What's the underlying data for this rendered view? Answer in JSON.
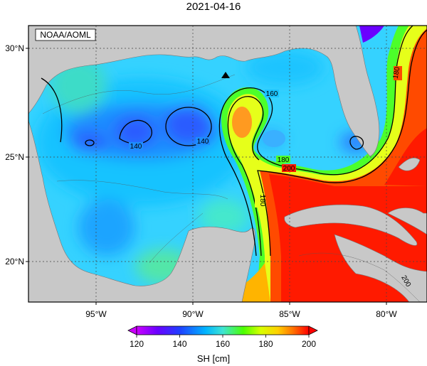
{
  "title": "2021-04-16",
  "credit": "NOAA/AOML",
  "latitude_labels": [
    "30°N",
    "25°N",
    "20°N"
  ],
  "longitude_labels": [
    "95°W",
    "90°W",
    "85°W",
    "80°W"
  ],
  "contour_labels": [
    "140",
    "140",
    "160",
    "180",
    "180",
    "180",
    "200",
    "200"
  ],
  "colorbar": {
    "title": "SH [cm]",
    "ticks": [
      "120",
      "140",
      "160",
      "180",
      "200"
    ],
    "colors": [
      "#cc00ff",
      "#6a00ff",
      "#1f3fff",
      "#00b4ff",
      "#3fe4d4",
      "#4bff00",
      "#d8ff00",
      "#ffd000",
      "#ff7000",
      "#ff0000"
    ]
  },
  "colors": {
    "land": "#c8c8c8",
    "frame": "#000000",
    "grid": "#444444",
    "marker": "#000000"
  },
  "icons": {
    "buoy_marker": "black-triangle"
  }
}
